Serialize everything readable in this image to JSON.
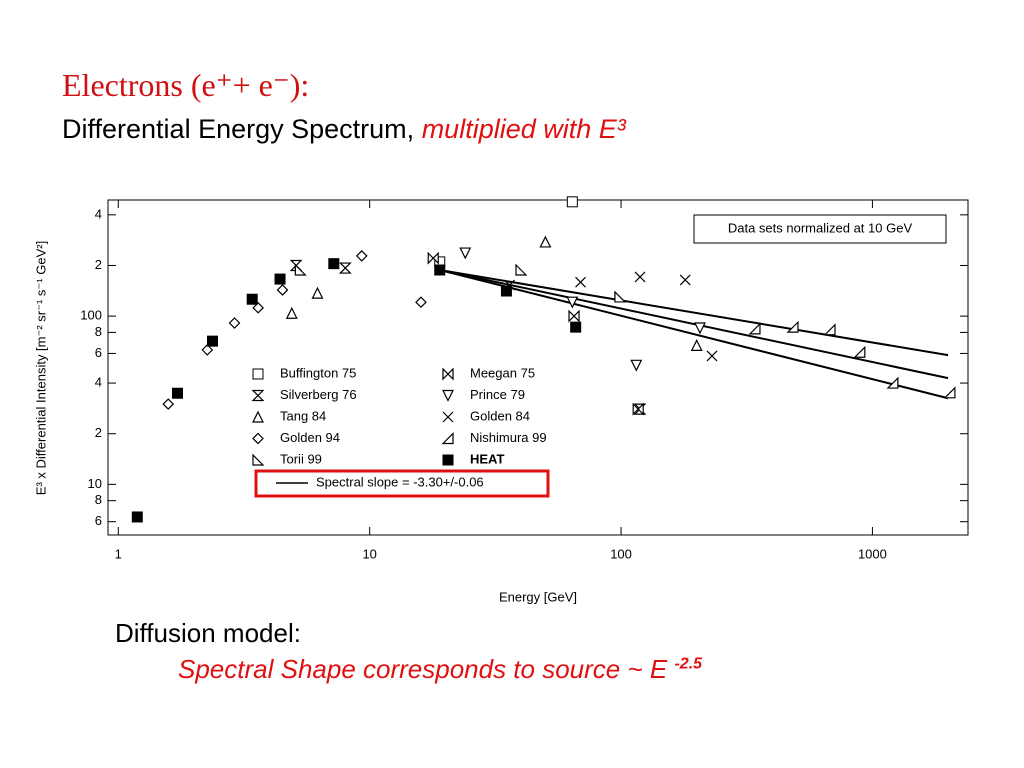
{
  "title": "Electrons (e⁺+ e⁻):",
  "subtitle": "Differential Energy Spectrum,",
  "subtitle_emphasis": "multiplied with E³",
  "chart_data": {
    "type": "scatter",
    "xlabel": "Energy [GeV]",
    "ylabel": "E³ x Differential Intensity [m⁻² sr⁻¹ s⁻¹ GeV²]",
    "log_x": true,
    "log_y": true,
    "xlim": [
      0.91,
      2400
    ],
    "ylim": [
      5,
      490
    ],
    "xticks": [
      1,
      10,
      100,
      1000
    ],
    "yticks": [
      {
        "value": 6,
        "label": "6"
      },
      {
        "value": 8,
        "label": "8"
      },
      10,
      {
        "value": 20,
        "label": "2"
      },
      {
        "value": 40,
        "label": "4"
      },
      {
        "value": 60,
        "label": "6"
      },
      {
        "value": 80,
        "label": "8"
      },
      100,
      {
        "value": 200,
        "label": "2"
      },
      {
        "value": 400,
        "label": "4"
      }
    ],
    "annotation": "Data sets normalized at 10 GeV",
    "series": [
      {
        "name": "Buffington 75",
        "marker": "square",
        "x": [
          64,
          19
        ],
        "values": [
          478,
          210
        ]
      },
      {
        "name": "Silverberg 76",
        "marker": "hourglass",
        "x": [
          5.1,
          8,
          119
        ],
        "values": [
          200,
          193,
          28
        ]
      },
      {
        "name": "Tang 84",
        "marker": "triangle-up",
        "x": [
          4.9,
          6.2,
          200,
          50
        ],
        "values": [
          104,
          137,
          67,
          276
        ]
      },
      {
        "name": "Golden 94",
        "marker": "diamond",
        "x": [
          1.58,
          2.26,
          2.9,
          3.6,
          4.5,
          9.3,
          16
        ],
        "values": [
          30,
          63,
          91,
          112,
          143,
          228,
          121
        ]
      },
      {
        "name": "Torii 99",
        "marker": "triangle-right",
        "x": [
          5.3,
          99,
          40
        ],
        "values": [
          188,
          130,
          188
        ]
      },
      {
        "name": "Meegan 75",
        "marker": "bowtie",
        "x": [
          117,
          17.9,
          65
        ],
        "values": [
          28,
          221,
          100
        ]
      },
      {
        "name": "Prince 79",
        "marker": "triangle-down",
        "x": [
          24,
          115,
          206,
          64
        ],
        "values": [
          237,
          51,
          85,
          121
        ]
      },
      {
        "name": "Golden 84",
        "marker": "cross",
        "x": [
          119,
          180,
          230,
          69,
          36
        ],
        "values": [
          171,
          164,
          58,
          159,
          153
        ]
      },
      {
        "name": "Nishimura 99",
        "marker": "triangle-left",
        "x": [
          341,
          483,
          678,
          891,
          1206,
          2033
        ],
        "values": [
          84,
          86,
          83,
          61,
          40,
          35
        ]
      },
      {
        "name": "HEAT",
        "marker": "filled-square",
        "x": [
          1.19,
          1.72,
          2.37,
          3.41,
          4.4,
          7.2,
          19,
          35,
          66
        ],
        "values": [
          6.4,
          34.8,
          71,
          126,
          166,
          205,
          188,
          141,
          86
        ]
      }
    ],
    "fit_label": "Spectral slope = -3.30+/-0.06",
    "fit_lines": [
      {
        "x": [
          19,
          2000
        ],
        "y": [
          188,
          58.6
        ]
      },
      {
        "x": [
          19,
          2000
        ],
        "y": [
          188,
          42.8
        ]
      },
      {
        "x": [
          19,
          2000
        ],
        "y": [
          188,
          32.5
        ]
      }
    ]
  },
  "footer": {
    "heading": "Diffusion model:",
    "text": "Spectral Shape corresponds to source ~ E",
    "exponent": "-2.5"
  }
}
